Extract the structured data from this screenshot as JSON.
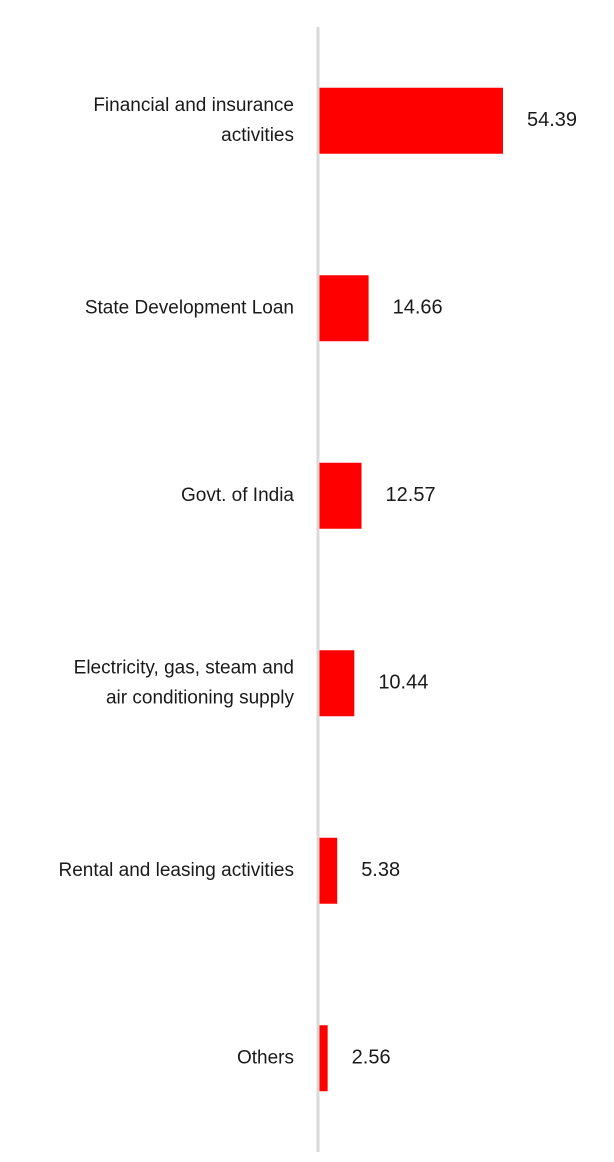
{
  "chart_data": {
    "type": "bar",
    "orientation": "horizontal",
    "categories": [
      "Financial and insurance activities",
      "State Development Loan",
      "Govt. of India",
      "Electricity, gas, steam and air conditioning supply",
      "Rental and leasing activities",
      "Others"
    ],
    "category_lines": [
      [
        "Financial and insurance",
        "activities"
      ],
      [
        "State Development Loan"
      ],
      [
        "Govt. of India"
      ],
      [
        "Electricity, gas, steam and",
        "air conditioning supply"
      ],
      [
        "Rental and leasing activities"
      ],
      [
        "Others"
      ]
    ],
    "values": [
      54.39,
      14.66,
      12.57,
      10.44,
      5.38,
      2.56
    ],
    "value_labels": [
      "54.39",
      "14.66",
      "12.57",
      "10.44",
      "5.38",
      "2.56"
    ],
    "xlim": [
      0,
      60
    ],
    "grid": false,
    "legend": "none",
    "colors": {
      "bar": "#ff0000",
      "axis": "#d9d9d9",
      "text": "#1a1a1a"
    }
  }
}
